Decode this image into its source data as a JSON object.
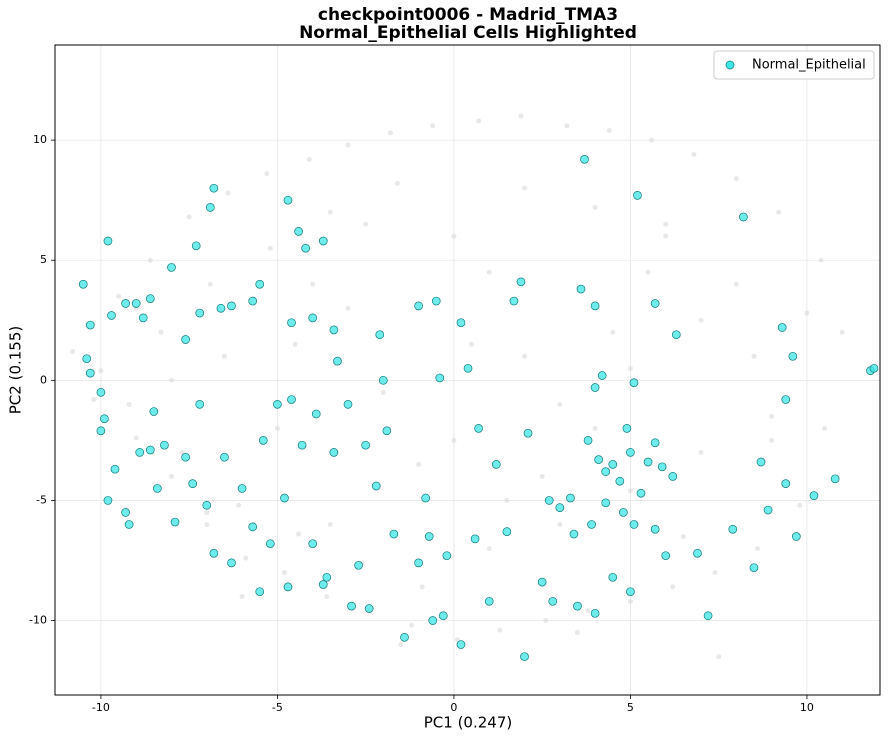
{
  "chart_data": {
    "type": "scatter",
    "title": [
      "checkpoint0006 - Madrid_TMA3",
      "Normal_Epithelial Cells Highlighted"
    ],
    "x_label": "PC1 (0.247)",
    "y_label": "PC2 (0.155)",
    "xlim": [
      -11.3,
      12.07
    ],
    "ylim": [
      -13.1,
      13.96
    ],
    "xticks": [
      -10,
      -5,
      0,
      5,
      10
    ],
    "yticks": [
      -10,
      -5,
      0,
      5,
      10
    ],
    "grid": true,
    "legend": "upper right",
    "series": [
      {
        "color": "#d9d9d9",
        "x": [
          -10.8,
          -10.2,
          -9.5,
          -9.0,
          -8.6,
          -8.0,
          -7.5,
          -7.0,
          -6.4,
          -5.9,
          -5.3,
          -4.8,
          -4.1,
          -3.6,
          -3.0,
          -2.4,
          -1.8,
          -1.2,
          -0.6,
          0.1,
          0.7,
          1.3,
          1.9,
          2.6,
          3.2,
          3.8,
          4.4,
          5.0,
          5.6,
          6.2,
          6.8,
          7.4,
          8.0,
          8.6,
          9.2,
          9.8,
          10.4,
          11.0,
          -10.0,
          -9.2,
          -8.3,
          -7.7,
          -6.9,
          -6.1,
          -5.2,
          -4.4,
          -3.5,
          -2.6,
          -1.6,
          -0.9,
          0.0,
          1.0,
          2.0,
          3.0,
          4.0,
          5.0,
          6.0,
          7.0,
          8.0,
          9.0,
          10.0,
          -8.0,
          -6.5,
          -5.0,
          -3.0,
          -1.0,
          1.0,
          3.0,
          5.0,
          7.0,
          9.0,
          -7.0,
          -4.0,
          -2.0,
          0.5,
          2.5,
          4.5,
          6.5,
          8.5,
          -9.0,
          -3.5,
          1.5,
          6.0,
          10.5,
          -6.0,
          -1.5,
          3.5,
          7.5,
          -2.5,
          0.0,
          2.0,
          4.0,
          -4.5,
          5.5
        ],
        "values": [
          1.2,
          -0.8,
          3.5,
          -2.4,
          5.0,
          -4.0,
          6.8,
          -6.0,
          7.8,
          -7.4,
          8.6,
          -8.0,
          9.2,
          -9.0,
          9.8,
          -9.6,
          10.3,
          -10.2,
          10.6,
          -10.8,
          10.8,
          -10.4,
          11.0,
          -10.0,
          10.6,
          -9.6,
          10.4,
          -9.2,
          10.0,
          -8.6,
          9.4,
          -8.0,
          8.4,
          -7.0,
          7.0,
          -5.2,
          5.0,
          2.0,
          0.4,
          -1.0,
          2.0,
          -3.0,
          4.0,
          -5.2,
          5.5,
          -6.4,
          7.0,
          -7.6,
          8.2,
          -8.6,
          6.0,
          -7.0,
          8.0,
          -6.0,
          7.2,
          -4.6,
          6.5,
          -3.0,
          4.0,
          -1.5,
          2.8,
          0.0,
          1.0,
          -2.0,
          3.0,
          -3.5,
          4.5,
          -1.0,
          0.5,
          2.5,
          -2.5,
          -5.5,
          4.0,
          -0.5,
          1.5,
          -4.0,
          2.0,
          -6.5,
          1.0,
          3.0,
          -6.0,
          -5.0,
          6.0,
          -2.0,
          -9.0,
          -11.0,
          -10.5,
          -11.5,
          6.5,
          -2.5,
          1.0,
          -2.0,
          1.5,
          4.5
        ]
      },
      {
        "name": "Normal_Epithelial",
        "color": "#3ee6e6",
        "x": [
          -10.5,
          -10.3,
          -10.4,
          -10.3,
          -9.8,
          -9.7,
          -9.3,
          -9.0,
          -8.8,
          -8.6,
          -8.0,
          -7.6,
          -7.2,
          -6.6,
          -6.3,
          -5.7,
          -5.5,
          -6.9,
          -6.8,
          -7.3,
          -4.7,
          -4.4,
          -4.2,
          -3.7,
          -4.0,
          -4.6,
          -3.4,
          -3.3,
          -2.1,
          -2.0,
          -10.0,
          -9.9,
          -10.0,
          -9.6,
          -9.8,
          -9.3,
          -9.2,
          -8.9,
          -8.6,
          -8.5,
          -8.4,
          -8.2,
          -7.9,
          -7.6,
          -7.4,
          -7.2,
          -7.0,
          -6.8,
          -6.5,
          -6.3,
          -6.0,
          -5.7,
          -5.4,
          -5.2,
          -5.0,
          -4.8,
          -4.6,
          -4.3,
          -4.0,
          -3.9,
          -3.6,
          -3.4,
          -3.0,
          -2.7,
          -2.5,
          -2.2,
          -1.9,
          -1.7,
          -1.4,
          -1.0,
          -0.6,
          -0.3,
          0.2,
          -0.8,
          -0.4,
          -0.5,
          -1.0,
          0.2,
          0.4,
          0.7,
          1.2,
          1.5,
          1.7,
          1.9,
          2.0,
          2.1,
          2.5,
          2.7,
          3.0,
          3.3,
          3.6,
          3.7,
          4.0,
          4.2,
          4.0,
          5.1,
          5.2,
          5.7,
          6.3,
          8.2,
          9.3,
          9.4,
          9.6,
          11.8,
          11.9,
          10.2,
          10.8,
          9.7,
          8.5,
          7.2,
          4.0,
          3.5,
          4.5,
          5.0,
          6.0,
          6.9,
          3.8,
          4.1,
          4.3,
          4.5,
          4.7,
          4.9,
          5.0,
          5.3,
          5.5,
          5.7,
          5.9,
          6.2,
          5.7,
          5.1,
          4.8,
          4.3,
          3.9,
          3.4,
          7.9,
          8.7,
          9.4,
          8.9,
          2.8,
          1.0,
          0.6,
          -0.2,
          -0.7,
          -5.5,
          -4.7,
          -2.4,
          -2.9,
          -3.7
        ],
        "values": [
          4.0,
          2.3,
          0.9,
          0.3,
          5.8,
          2.7,
          3.2,
          3.2,
          2.6,
          3.4,
          4.7,
          1.7,
          2.8,
          3.0,
          3.1,
          3.3,
          4.0,
          7.2,
          8.0,
          5.6,
          7.5,
          6.2,
          5.5,
          5.8,
          2.6,
          2.4,
          2.1,
          0.8,
          1.9,
          0.0,
          -0.5,
          -1.6,
          -2.1,
          -3.7,
          -5.0,
          -5.5,
          -6.0,
          -3.0,
          -2.9,
          -1.3,
          -4.5,
          -2.7,
          -5.9,
          -3.2,
          -4.3,
          -1.0,
          -5.2,
          -7.2,
          -3.2,
          -7.6,
          -4.5,
          -6.1,
          -2.5,
          -6.8,
          -1.0,
          -4.9,
          -0.8,
          -2.7,
          -6.8,
          -1.4,
          -8.2,
          -3.0,
          -1.0,
          -7.7,
          -2.7,
          -4.4,
          -2.1,
          -6.4,
          -10.7,
          -7.6,
          -10.0,
          -9.8,
          -11.0,
          -4.9,
          0.1,
          3.3,
          3.1,
          2.4,
          0.5,
          -2.0,
          -3.5,
          -6.3,
          3.3,
          4.1,
          -11.5,
          -2.2,
          -8.4,
          -5.0,
          -5.3,
          -4.9,
          3.8,
          9.2,
          3.1,
          0.2,
          -0.3,
          -0.1,
          7.7,
          3.2,
          1.9,
          6.8,
          2.2,
          -0.8,
          1.0,
          0.4,
          0.5,
          -4.8,
          -4.1,
          -6.5,
          -7.8,
          -9.8,
          -9.7,
          -9.4,
          -8.2,
          -8.8,
          -7.3,
          -7.2,
          -2.5,
          -3.3,
          -3.8,
          -3.5,
          -4.2,
          -2.0,
          -3.0,
          -4.7,
          -3.4,
          -2.6,
          -3.6,
          -4.0,
          -6.2,
          -6.0,
          -5.5,
          -5.1,
          -6.0,
          -6.4,
          -6.2,
          -3.4,
          -4.3,
          -5.4,
          -9.2,
          -9.2,
          -6.6,
          -7.3,
          -6.5,
          -8.8,
          -8.6,
          -9.5,
          -9.4,
          -8.5
        ]
      }
    ]
  }
}
